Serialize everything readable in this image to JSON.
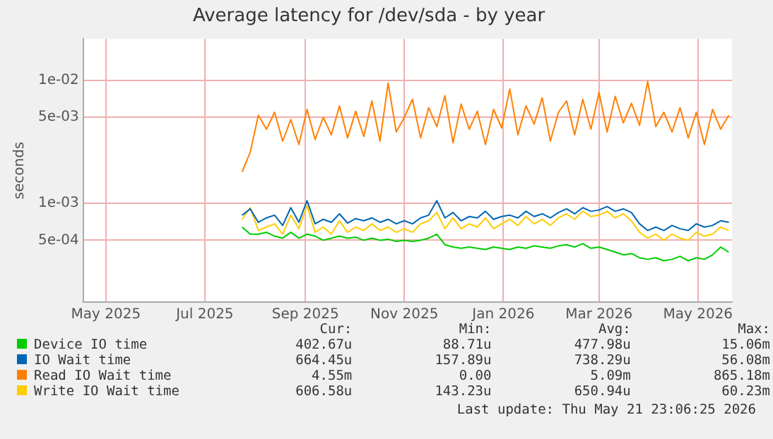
{
  "chart_data": {
    "type": "line",
    "title": "Average latency for /dev/sda - by year",
    "ylabel": "seconds",
    "x": [
      "2025-07-24",
      "2025-07-29",
      "2025-08-03",
      "2025-08-08",
      "2025-08-13",
      "2025-08-18",
      "2025-08-23",
      "2025-08-28",
      "2025-09-02",
      "2025-09-07",
      "2025-09-12",
      "2025-09-17",
      "2025-09-22",
      "2025-09-27",
      "2025-10-02",
      "2025-10-07",
      "2025-10-12",
      "2025-10-17",
      "2025-10-22",
      "2025-10-27",
      "2025-11-01",
      "2025-11-06",
      "2025-11-11",
      "2025-11-16",
      "2025-11-21",
      "2025-11-26",
      "2025-12-01",
      "2025-12-06",
      "2025-12-11",
      "2025-12-16",
      "2025-12-21",
      "2025-12-26",
      "2025-12-31",
      "2026-01-05",
      "2026-01-10",
      "2026-01-15",
      "2026-01-20",
      "2026-01-25",
      "2026-01-30",
      "2026-02-04",
      "2026-02-09",
      "2026-02-14",
      "2026-02-19",
      "2026-02-24",
      "2026-03-01",
      "2026-03-06",
      "2026-03-11",
      "2026-03-16",
      "2026-03-21",
      "2026-03-26",
      "2026-03-31",
      "2026-04-05",
      "2026-04-10",
      "2026-04-15",
      "2026-04-20",
      "2026-04-25",
      "2026-04-30",
      "2026-05-05",
      "2026-05-10",
      "2026-05-15",
      "2026-05-20"
    ],
    "series": [
      {
        "name": "Device IO time",
        "color": "#00cc00",
        "values": [
          0.00064,
          0.00056,
          0.00056,
          0.00058,
          0.00054,
          0.00052,
          0.00058,
          0.00052,
          0.00056,
          0.00054,
          0.0005,
          0.00052,
          0.00054,
          0.00052,
          0.00053,
          0.0005,
          0.00052,
          0.0005,
          0.00051,
          0.00049,
          0.0005,
          0.00049,
          0.0005,
          0.00052,
          0.00056,
          0.00046,
          0.00044,
          0.00043,
          0.00044,
          0.00043,
          0.00042,
          0.00044,
          0.00043,
          0.00042,
          0.00044,
          0.00043,
          0.00045,
          0.00044,
          0.00043,
          0.00045,
          0.00046,
          0.00044,
          0.00047,
          0.00043,
          0.00044,
          0.00042,
          0.0004,
          0.00038,
          0.00039,
          0.00036,
          0.00035,
          0.00036,
          0.00034,
          0.00035,
          0.00037,
          0.00034,
          0.00036,
          0.00035,
          0.00038,
          0.00044,
          0.0004
        ]
      },
      {
        "name": "IO Wait time",
        "color": "#0066b3",
        "values": [
          0.0008,
          0.0009,
          0.0007,
          0.00076,
          0.0008,
          0.00066,
          0.00092,
          0.0007,
          0.00105,
          0.00068,
          0.00074,
          0.0007,
          0.00082,
          0.00069,
          0.00075,
          0.00072,
          0.00076,
          0.0007,
          0.00074,
          0.00068,
          0.00072,
          0.00068,
          0.00076,
          0.0008,
          0.00105,
          0.00076,
          0.00084,
          0.00072,
          0.00078,
          0.00076,
          0.00086,
          0.00074,
          0.00078,
          0.0008,
          0.00076,
          0.00086,
          0.00078,
          0.00082,
          0.00076,
          0.00084,
          0.0009,
          0.00082,
          0.00092,
          0.00086,
          0.00088,
          0.00094,
          0.00086,
          0.0009,
          0.00084,
          0.00068,
          0.0006,
          0.00064,
          0.0006,
          0.00066,
          0.00062,
          0.0006,
          0.00068,
          0.00064,
          0.00066,
          0.00072,
          0.0007
        ]
      },
      {
        "name": "Read IO Wait time",
        "color": "#ff8000",
        "values": [
          0.0018,
          0.0026,
          0.0052,
          0.004,
          0.0055,
          0.0032,
          0.0048,
          0.003,
          0.0058,
          0.0033,
          0.005,
          0.0036,
          0.0062,
          0.0034,
          0.0056,
          0.0035,
          0.0068,
          0.0032,
          0.0095,
          0.0038,
          0.005,
          0.007,
          0.0034,
          0.006,
          0.0042,
          0.0075,
          0.0031,
          0.0064,
          0.004,
          0.0056,
          0.003,
          0.0058,
          0.0041,
          0.0085,
          0.0036,
          0.0062,
          0.0044,
          0.0072,
          0.0032,
          0.0055,
          0.0068,
          0.0036,
          0.007,
          0.004,
          0.008,
          0.0038,
          0.0074,
          0.0045,
          0.0065,
          0.0043,
          0.0098,
          0.0042,
          0.0055,
          0.0038,
          0.006,
          0.0034,
          0.0055,
          0.003,
          0.0058,
          0.004,
          0.0052
        ]
      },
      {
        "name": "Write IO Wait time",
        "color": "#ffcc00",
        "values": [
          0.00074,
          0.00092,
          0.0006,
          0.00064,
          0.00068,
          0.00056,
          0.0008,
          0.00062,
          0.00096,
          0.00058,
          0.00064,
          0.00056,
          0.00072,
          0.00058,
          0.00064,
          0.0006,
          0.00068,
          0.0006,
          0.00064,
          0.00058,
          0.00062,
          0.00058,
          0.00068,
          0.00072,
          0.00084,
          0.00062,
          0.00076,
          0.00062,
          0.00068,
          0.00064,
          0.00076,
          0.00062,
          0.00068,
          0.00074,
          0.00066,
          0.00078,
          0.00068,
          0.00074,
          0.00066,
          0.00076,
          0.00082,
          0.00074,
          0.00086,
          0.00078,
          0.0008,
          0.00086,
          0.00076,
          0.00082,
          0.00072,
          0.00058,
          0.00052,
          0.00056,
          0.0005,
          0.00056,
          0.00052,
          0.0005,
          0.00058,
          0.00054,
          0.00056,
          0.00064,
          0.0006
        ]
      }
    ],
    "log": "y",
    "grid": true,
    "legend": "bottom",
    "xlim": [
      "2025-04-17",
      "2026-05-22"
    ],
    "xticks": [
      {
        "value": "2025-05-01",
        "label": "May 2025"
      },
      {
        "value": "2025-07-01",
        "label": "Jul 2025"
      },
      {
        "value": "2025-09-01",
        "label": "Sep 2025"
      },
      {
        "value": "2025-11-01",
        "label": "Nov 2025"
      },
      {
        "value": "2026-01-01",
        "label": "Jan 2026"
      },
      {
        "value": "2026-03-01",
        "label": "Mar 2026"
      },
      {
        "value": "2026-05-01",
        "label": "May 2026"
      }
    ],
    "ylim": [
      0.000157,
      0.0217
    ],
    "yticks": [
      {
        "value": 0.0005,
        "label": "5e-04"
      },
      {
        "value": 0.001,
        "label": "1e-03"
      },
      {
        "value": 0.005,
        "label": "5e-03"
      },
      {
        "value": 0.01,
        "label": "1e-02"
      }
    ],
    "annotations": [
      "Cur:",
      "Min:",
      "Avg:",
      "Max:",
      "402.67u",
      "88.71u",
      "477.98u",
      "15.06m",
      "664.45u",
      "157.89u",
      "738.29u",
      "56.08m",
      "4.55m",
      "0.00",
      "5.09m",
      "865.18m",
      "606.58u",
      "143.23u",
      "650.94u",
      "60.23m",
      "Last update: Thu May 21 23:06:25 2026"
    ]
  }
}
